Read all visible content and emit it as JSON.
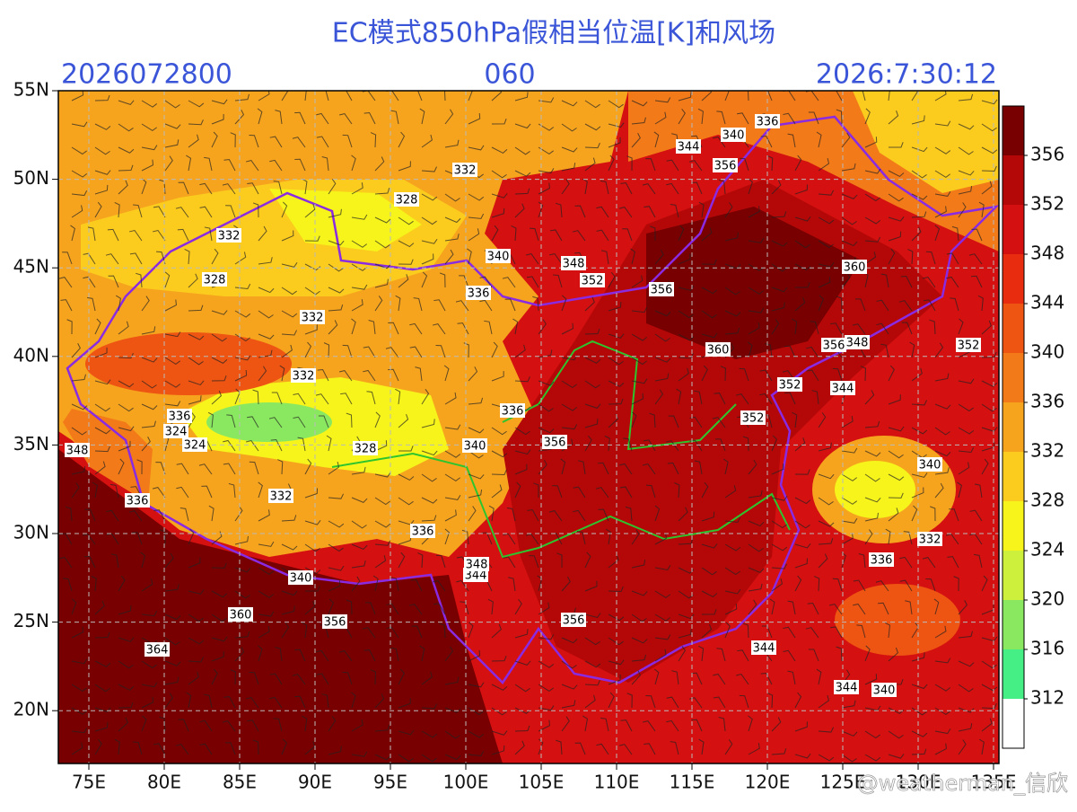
{
  "title": "EC模式850hPa假相当位温[K]和风场",
  "init_time": "2026072800",
  "forecast_hour": "060",
  "valid_time": "2026:7:30:12",
  "lon_labels": [
    "75E",
    "80E",
    "85E",
    "90E",
    "95E",
    "100E",
    "105E",
    "110E",
    "115E",
    "120E",
    "125E",
    "130E",
    "135E"
  ],
  "lat_labels": [
    "55N",
    "50N",
    "45N",
    "40N",
    "35N",
    "30N",
    "25N",
    "20N"
  ],
  "colorbar": {
    "levels": [
      312,
      316,
      320,
      324,
      328,
      332,
      336,
      340,
      344,
      348,
      352,
      356
    ],
    "colors": [
      "#ffffff",
      "#46ee86",
      "#8ae860",
      "#cdf03c",
      "#f6f41a",
      "#fbcb1e",
      "#f6a41e",
      "#f27a18",
      "#ee5412",
      "#e72c10",
      "#d41010",
      "#b40808",
      "#780000"
    ]
  },
  "contour_labels": [
    "336",
    "344",
    "340",
    "356",
    "332",
    "328",
    "332",
    "340",
    "348",
    "352",
    "356",
    "360",
    "328",
    "336",
    "332",
    "360",
    "356",
    "348",
    "352",
    "332",
    "352",
    "344",
    "336",
    "352",
    "336",
    "324",
    "324",
    "348",
    "328",
    "340",
    "356",
    "340",
    "336",
    "332",
    "336",
    "332",
    "336",
    "340",
    "344",
    "348",
    "360",
    "356",
    "356",
    "364",
    "344",
    "344",
    "340"
  ],
  "watermark": "@weatherman_信欣"
}
